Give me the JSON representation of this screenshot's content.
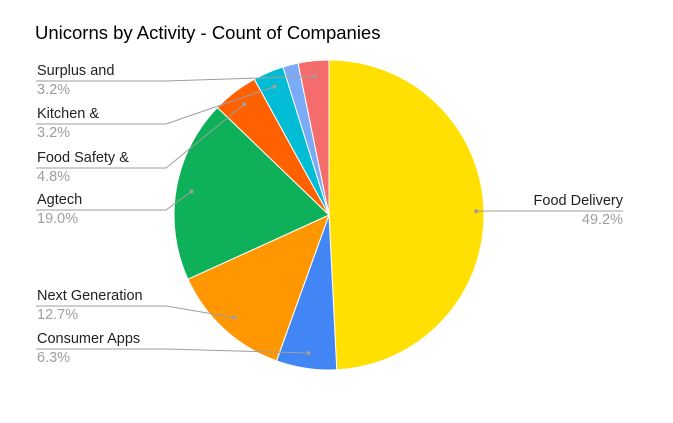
{
  "chart_data": {
    "type": "pie",
    "title": "Unicorns by Activity - Count of Companies",
    "start_angle_deg": 0,
    "direction": "clockwise",
    "slices": [
      {
        "label": "Food Delivery",
        "value": 49.2,
        "display": "49.2%",
        "color": "#FFE000"
      },
      {
        "label": "Consumer Apps",
        "value": 6.3,
        "display": "6.3%",
        "color": "#4285F4"
      },
      {
        "label": "Next Generation",
        "value": 12.7,
        "display": "12.7%",
        "color": "#FF9800"
      },
      {
        "label": "Agtech",
        "value": 19.0,
        "display": "19.0%",
        "color": "#0FB05A"
      },
      {
        "label": "Food Safety &",
        "value": 4.8,
        "display": "4.8%",
        "color": "#FF6100"
      },
      {
        "label": "Kitchen &",
        "value": 3.2,
        "display": "3.2%",
        "color": "#00BCD4"
      },
      {
        "label": "",
        "value": 1.6,
        "display": "",
        "color": "#7BAAF7"
      },
      {
        "label": "Surplus and",
        "value": 3.2,
        "display": "3.2%",
        "color": "#F56C6C"
      }
    ]
  }
}
